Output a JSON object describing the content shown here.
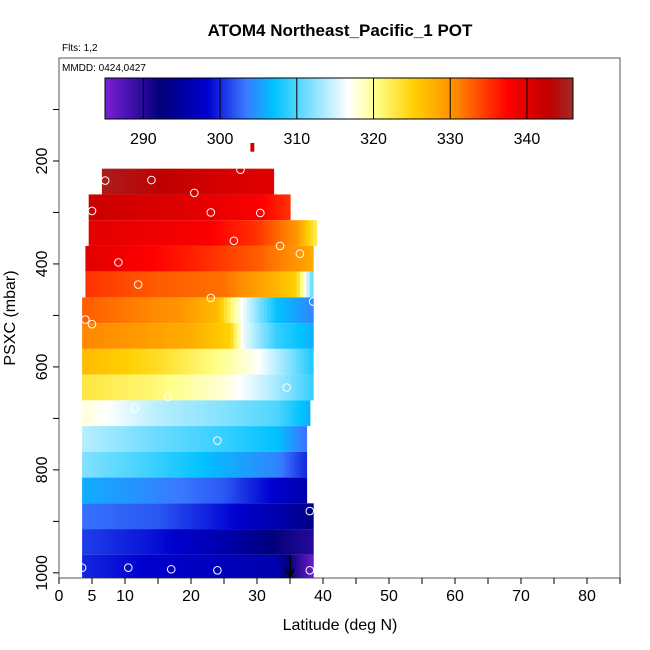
{
  "chart_data": {
    "type": "heatmap",
    "title": "ATOM4 Northeast_Pacific_1 POT",
    "flights_label": "Flts: 1,2",
    "dates_label": "MMDD: 0424,0427",
    "xlabel": "Latitude (deg N)",
    "ylabel": "PSXC (mbar)",
    "xlim": [
      0,
      85
    ],
    "ylim": [
      1010,
      0
    ],
    "x_ticks": [
      0,
      5,
      10,
      20,
      30,
      40,
      50,
      60,
      70,
      80
    ],
    "x_tick_labels": [
      "0",
      "5",
      "10",
      "20",
      "30",
      "40",
      "50",
      "60",
      "70",
      "80"
    ],
    "y_ticks": [
      200,
      400,
      600,
      800,
      1000
    ],
    "y_tick_labels": [
      "200",
      "400",
      "600",
      "800",
      "1000"
    ],
    "colorbar": {
      "range": [
        285,
        346
      ],
      "ticks": [
        290,
        300,
        310,
        320,
        330,
        340
      ],
      "tick_labels": [
        "290",
        "300",
        "310",
        "320",
        "330",
        "340"
      ],
      "colors": [
        "#7a1fd6",
        "#00007a",
        "#0000d0",
        "#3a78ff",
        "#00c2ff",
        "#ffffff",
        "#ffff8a",
        "#ffd000",
        "#ff8a00",
        "#ff0000",
        "#bf0000",
        "#a12a2a"
      ],
      "color_positions": [
        0,
        0.12,
        0.22,
        0.3,
        0.36,
        0.52,
        0.58,
        0.66,
        0.75,
        0.86,
        0.95,
        1
      ]
    },
    "rows": [
      {
        "p_top": 165,
        "p_bottom": 182,
        "lat_min": 29.0,
        "lat_max": 29.5,
        "lat_vals": [
          29.0,
          29.5
        ],
        "pot_vals": [
          342,
          342
        ]
      },
      {
        "p_top": 215,
        "p_bottom": 265,
        "lat_min": 6.5,
        "lat_max": 32.5,
        "lat_vals": [
          6.5,
          25,
          32.5
        ],
        "pot_vals": [
          345,
          341,
          340
        ]
      },
      {
        "p_top": 265,
        "p_bottom": 315,
        "lat_min": 4.5,
        "lat_max": 35.0,
        "lat_vals": [
          4.5,
          20,
          30,
          35
        ],
        "pot_vals": [
          342,
          340,
          338,
          335
        ]
      },
      {
        "p_top": 315,
        "p_bottom": 365,
        "lat_min": 4.5,
        "lat_max": 39.0,
        "lat_vals": [
          4.5,
          22,
          30,
          36,
          39
        ],
        "pot_vals": [
          340,
          338,
          335,
          330,
          322
        ]
      },
      {
        "p_top": 365,
        "p_bottom": 415,
        "lat_min": 4.0,
        "lat_max": 38.5,
        "lat_vals": [
          4,
          20,
          30,
          36,
          38.5
        ],
        "pot_vals": [
          340,
          336,
          333,
          330,
          328
        ]
      },
      {
        "p_top": 415,
        "p_bottom": 465,
        "lat_min": 4.0,
        "lat_max": 38.5,
        "lat_vals": [
          4,
          15,
          25,
          32,
          36,
          38.5
        ],
        "pot_vals": [
          335,
          333,
          332,
          328,
          325,
          310
        ]
      },
      {
        "p_top": 465,
        "p_bottom": 515,
        "lat_min": 3.5,
        "lat_max": 38.5,
        "lat_vals": [
          3.5,
          18,
          24,
          28,
          33,
          38.5
        ],
        "pot_vals": [
          333,
          330,
          327,
          316,
          307,
          304
        ]
      },
      {
        "p_top": 515,
        "p_bottom": 565,
        "lat_min": 3.5,
        "lat_max": 38.5,
        "lat_vals": [
          3.5,
          20,
          26,
          28,
          33,
          38.5
        ],
        "pot_vals": [
          331,
          328,
          325,
          316,
          309,
          306
        ]
      },
      {
        "p_top": 565,
        "p_bottom": 615,
        "lat_min": 3.5,
        "lat_max": 38.5,
        "lat_vals": [
          3.5,
          15,
          25,
          30,
          35,
          38.5
        ],
        "pot_vals": [
          327,
          324,
          320,
          317,
          312,
          308
        ]
      },
      {
        "p_top": 615,
        "p_bottom": 665,
        "lat_min": 3.5,
        "lat_max": 38.5,
        "lat_vals": [
          3.5,
          15,
          25,
          32,
          38.5
        ],
        "pot_vals": [
          323,
          321,
          318,
          314,
          309
        ]
      },
      {
        "p_top": 665,
        "p_bottom": 715,
        "lat_min": 3.5,
        "lat_max": 38.0,
        "lat_vals": [
          3.5,
          15,
          25,
          33,
          38
        ],
        "pot_vals": [
          318,
          314,
          312,
          310,
          306
        ]
      },
      {
        "p_top": 715,
        "p_bottom": 765,
        "lat_min": 3.5,
        "lat_max": 37.5,
        "lat_vals": [
          3.5,
          15,
          25,
          33,
          37.5
        ],
        "pot_vals": [
          314,
          311,
          309,
          307,
          303
        ]
      },
      {
        "p_top": 765,
        "p_bottom": 815,
        "lat_min": 3.5,
        "lat_max": 37.5,
        "lat_vals": [
          3.5,
          15,
          25,
          33,
          37.5
        ],
        "pot_vals": [
          312,
          309,
          306,
          304,
          300
        ]
      },
      {
        "p_top": 815,
        "p_bottom": 865,
        "lat_min": 3.5,
        "lat_max": 37.5,
        "lat_vals": [
          3.5,
          15,
          25,
          33,
          37.5
        ],
        "pot_vals": [
          306,
          304,
          302,
          298,
          296
        ]
      },
      {
        "p_top": 865,
        "p_bottom": 915,
        "lat_min": 3.5,
        "lat_max": 38.5,
        "lat_vals": [
          3.5,
          15,
          25,
          33,
          38.5
        ],
        "pot_vals": [
          303,
          302,
          299,
          296,
          293
        ]
      },
      {
        "p_top": 915,
        "p_bottom": 965,
        "lat_min": 3.5,
        "lat_max": 38.5,
        "lat_vals": [
          3.5,
          15,
          25,
          33,
          38.5
        ],
        "pot_vals": [
          301,
          299,
          296,
          292,
          290
        ]
      },
      {
        "p_top": 965,
        "p_bottom": 1010,
        "lat_min": 3.5,
        "lat_max": 38.5,
        "lat_vals": [
          3.5,
          15,
          25,
          33,
          36,
          38.5
        ],
        "pot_vals": [
          300,
          298,
          297,
          296,
          290,
          286
        ]
      }
    ],
    "points": [
      {
        "lat": 29.5,
        "p": 195
      },
      {
        "lat": 27.5,
        "p": 217
      },
      {
        "lat": 7.0,
        "p": 238
      },
      {
        "lat": 14.0,
        "p": 237
      },
      {
        "lat": 20.5,
        "p": 262
      },
      {
        "lat": 5.0,
        "p": 297
      },
      {
        "lat": 23.0,
        "p": 300
      },
      {
        "lat": 30.5,
        "p": 301
      },
      {
        "lat": 26.5,
        "p": 355
      },
      {
        "lat": 33.5,
        "p": 365
      },
      {
        "lat": 36.5,
        "p": 380
      },
      {
        "lat": 9.0,
        "p": 397
      },
      {
        "lat": 12.0,
        "p": 440
      },
      {
        "lat": 23.0,
        "p": 466
      },
      {
        "lat": 38.5,
        "p": 473
      },
      {
        "lat": 4.0,
        "p": 508
      },
      {
        "lat": 5.0,
        "p": 517
      },
      {
        "lat": 34.5,
        "p": 640
      },
      {
        "lat": 16.5,
        "p": 658
      },
      {
        "lat": 11.5,
        "p": 680
      },
      {
        "lat": 3.5,
        "p": 690
      },
      {
        "lat": 24.0,
        "p": 743
      },
      {
        "lat": 38.0,
        "p": 880
      },
      {
        "lat": 3.5,
        "p": 990
      },
      {
        "lat": 10.5,
        "p": 990
      },
      {
        "lat": 17.0,
        "p": 993
      },
      {
        "lat": 24.0,
        "p": 995
      },
      {
        "lat": 38.0,
        "p": 995
      }
    ],
    "arrow_lat": 35.0
  }
}
